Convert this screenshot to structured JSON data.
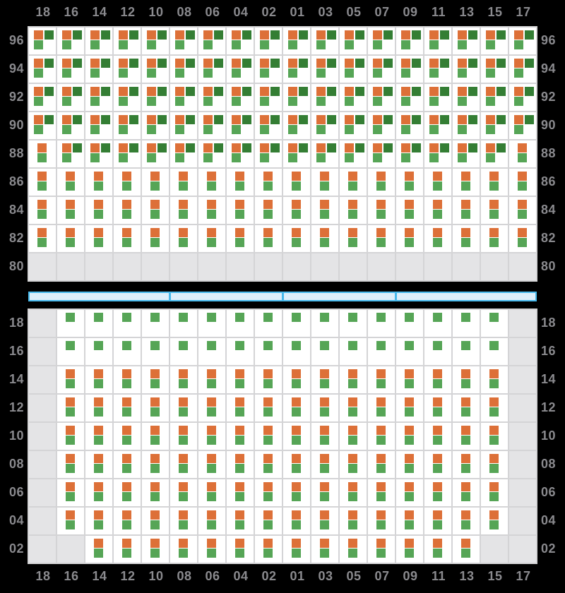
{
  "columns": [
    "18",
    "16",
    "14",
    "12",
    "10",
    "08",
    "06",
    "04",
    "02",
    "01",
    "03",
    "05",
    "07",
    "09",
    "11",
    "13",
    "15",
    "17"
  ],
  "upper_grid": {
    "row_labels": [
      "96",
      "94",
      "92",
      "90",
      "88",
      "86",
      "84",
      "82",
      "80"
    ],
    "rows": [
      "TTTTTTTTTTTTTTTTTT",
      "TTTTTTTTTTTTTTTTTT",
      "TTTTTTTTTTTTTTTTTT",
      "TTTTTTTTTTTTTTTTTT",
      "DTTTTTTTTTTTTTTTTD",
      "DDDDDDDDDDDDDDDDDD",
      "DDDDDDDDDDDDDDDDDD",
      "DDDDDDDDDDDDDDDDDD",
      "EEEEEEEEEEEEEEEEEE"
    ]
  },
  "lower_grid": {
    "row_labels": [
      "18",
      "16",
      "14",
      "12",
      "10",
      "08",
      "06",
      "04",
      "02"
    ],
    "rows": [
      "ESSSSSSSSSSSSSSSSE",
      "ESSSSSSSSSSSSSSSSE",
      "EDDDDDDDDDDDDDDDDE",
      "EDDDDDDDDDDDDDDDDE",
      "EDDDDDDDDDDDDDDDDE",
      "EDDDDDDDDDDDDDDDDE",
      "EDDDDDDDDDDDDDDDDE",
      "EDDDDDDDDDDDDDDDDE",
      "EEDDDDDDDDDDDDDDEE"
    ]
  },
  "patterns": {
    "T": [
      "orange",
      "dark_green",
      "green"
    ],
    "D": [
      "orange",
      "green"
    ],
    "S": [
      "green"
    ],
    "E": []
  },
  "square_icons": {
    "orange": "orange-square-icon",
    "dark_green": "dark-green-square-icon",
    "green": "green-square-icon"
  },
  "aisle": {
    "segments_cols": [
      5,
      4,
      4,
      5
    ]
  },
  "colors": {
    "bg": "#000000",
    "cell_bg": "#ffffff",
    "empty_bg": "#e4e4e6",
    "grid_line": "#d4d4d6",
    "label": "#8a8a8e",
    "orange": "#dd7038",
    "dark_green": "#347e34",
    "green": "#56a556",
    "bar_fill": "#ddeefa",
    "bar_border": "#46b8eb"
  }
}
